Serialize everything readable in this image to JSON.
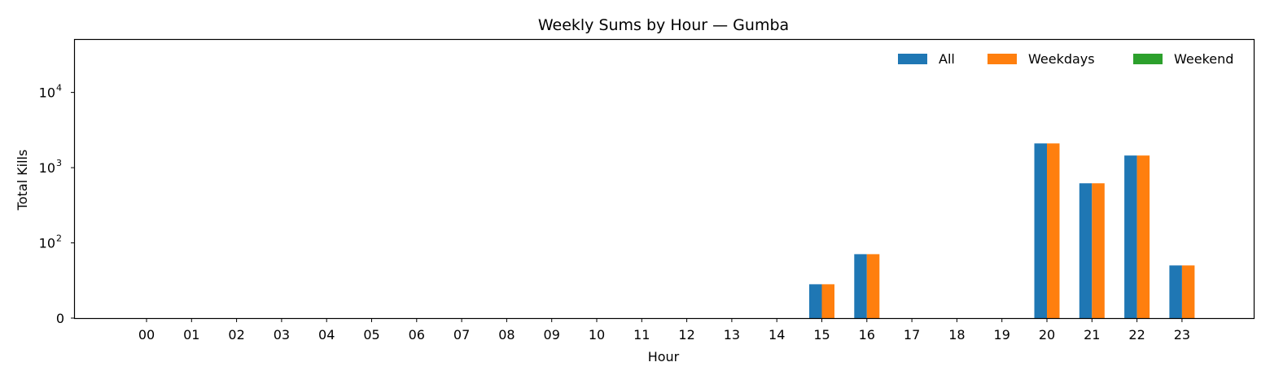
{
  "chart_data": {
    "type": "bar",
    "title": "Weekly Sums by Hour — Gumba",
    "xlabel": "Hour",
    "ylabel": "Total Kills",
    "yscale": "symlog",
    "ylim": [
      0,
      50000
    ],
    "yticks": [
      {
        "value": 0,
        "base": "0",
        "exp": ""
      },
      {
        "value": 100,
        "base": "10",
        "exp": "2"
      },
      {
        "value": 1000,
        "base": "10",
        "exp": "3"
      },
      {
        "value": 10000,
        "base": "10",
        "exp": "4"
      }
    ],
    "grid": false,
    "legend_position": "top-right",
    "categories": [
      "00",
      "01",
      "02",
      "03",
      "04",
      "05",
      "06",
      "07",
      "08",
      "09",
      "10",
      "11",
      "12",
      "13",
      "14",
      "15",
      "16",
      "17",
      "18",
      "19",
      "20",
      "21",
      "22",
      "23"
    ],
    "series": [
      {
        "name": "All",
        "color": "#1f77b4",
        "values": [
          0,
          0,
          0,
          0,
          0,
          0,
          0,
          0,
          0,
          0,
          0,
          0,
          0,
          0,
          0,
          45,
          85,
          0,
          0,
          0,
          2100,
          620,
          1450,
          70
        ]
      },
      {
        "name": "Weekdays",
        "color": "#ff7f0e",
        "values": [
          0,
          0,
          0,
          0,
          0,
          0,
          0,
          0,
          0,
          0,
          0,
          0,
          0,
          0,
          0,
          45,
          85,
          0,
          0,
          0,
          2100,
          620,
          1450,
          70
        ]
      },
      {
        "name": "Weekend",
        "color": "#2ca02c",
        "values": [
          0,
          0,
          0,
          0,
          0,
          0,
          0,
          0,
          0,
          0,
          0,
          0,
          0,
          0,
          0,
          0,
          0,
          0,
          0,
          0,
          0,
          0,
          0,
          0
        ]
      }
    ]
  }
}
